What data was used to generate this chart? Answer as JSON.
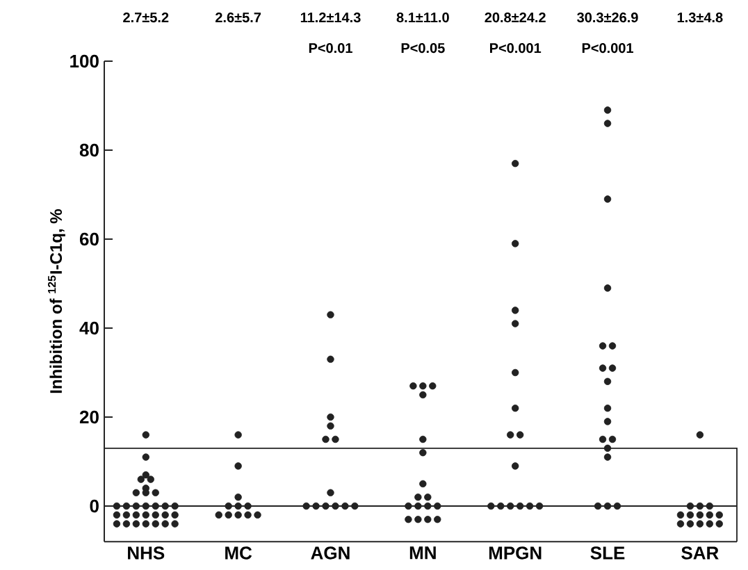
{
  "chart_data": {
    "type": "scatter",
    "ylabel": "Inhibition of $^{125}$I-C1q, %",
    "categories": [
      "NHS",
      "MC",
      "AGN",
      "MN",
      "MPGN",
      "SLE",
      "SAR"
    ],
    "marker": "circle",
    "series": [
      {
        "color": "#222222",
        "x": [
          "NHS",
          "NHS",
          "NHS",
          "NHS",
          "NHS",
          "NHS",
          "NHS",
          "NHS",
          "NHS",
          "NHS",
          "NHS",
          "NHS",
          "NHS",
          "NHS",
          "NHS",
          "NHS",
          "NHS",
          "NHS",
          "NHS",
          "NHS",
          "NHS",
          "NHS",
          "NHS",
          "NHS",
          "NHS",
          "NHS",
          "NHS",
          "NHS",
          "NHS",
          "NHS",
          "MC",
          "MC",
          "MC",
          "MC",
          "MC",
          "MC",
          "MC",
          "MC",
          "MC",
          "MC",
          "MC",
          "AGN",
          "AGN",
          "AGN",
          "AGN",
          "AGN",
          "AGN",
          "AGN",
          "AGN",
          "AGN",
          "AGN",
          "AGN",
          "AGN",
          "AGN",
          "MN",
          "MN",
          "MN",
          "MN",
          "MN",
          "MN",
          "MN",
          "MN",
          "MN",
          "MN",
          "MN",
          "MN",
          "MN",
          "MN",
          "MN",
          "MN",
          "MN",
          "MPGN",
          "MPGN",
          "MPGN",
          "MPGN",
          "MPGN",
          "MPGN",
          "MPGN",
          "MPGN",
          "MPGN",
          "MPGN",
          "MPGN",
          "MPGN",
          "MPGN",
          "MPGN",
          "MPGN",
          "SLE",
          "SLE",
          "SLE",
          "SLE",
          "SLE",
          "SLE",
          "SLE",
          "SLE",
          "SLE",
          "SLE",
          "SLE",
          "SLE",
          "SLE",
          "SLE",
          "SLE",
          "SLE",
          "SLE",
          "SLE",
          "SAR",
          "SAR",
          "SAR",
          "SAR",
          "SAR",
          "SAR",
          "SAR",
          "SAR",
          "SAR",
          "SAR",
          "SAR",
          "SAR",
          "SAR",
          "SAR"
        ],
        "values": [
          16,
          11,
          7,
          6,
          6,
          4,
          3,
          3,
          3,
          0,
          0,
          0,
          0,
          0,
          0,
          0,
          -2,
          -2,
          -2,
          -2,
          -2,
          -2,
          -2,
          -4,
          -4,
          -4,
          -4,
          -4,
          -4,
          -4,
          16,
          9,
          2,
          0,
          0,
          0,
          -2,
          -2,
          -2,
          -2,
          -2,
          43,
          33,
          20,
          18,
          15,
          15,
          3,
          0,
          0,
          0,
          0,
          0,
          0,
          27,
          27,
          27,
          25,
          15,
          12,
          5,
          2,
          2,
          0,
          0,
          0,
          0,
          -3,
          -3,
          -3,
          -3,
          77,
          59,
          44,
          41,
          30,
          22,
          16,
          16,
          9,
          0,
          0,
          0,
          0,
          0,
          0,
          89,
          86,
          69,
          49,
          36,
          36,
          31,
          31,
          28,
          22,
          19,
          15,
          15,
          13,
          11,
          0,
          0,
          0,
          16,
          0,
          0,
          0,
          -2,
          -2,
          -2,
          -2,
          -2,
          -4,
          -4,
          -4,
          -4,
          -4
        ]
      }
    ],
    "ylim": [
      -8,
      100
    ],
    "yticks": [
      0,
      20,
      40,
      60,
      80,
      100
    ],
    "ref_lines": [
      {
        "axis": "y",
        "value": 0,
        "color": "#222222"
      },
      {
        "axis": "y",
        "value": 13,
        "color": "#222222"
      }
    ],
    "annotations": [
      "2.7±5.2",
      "2.6±5.7",
      "11.2±14.3",
      "8.1±11.0",
      "20.8±24.2",
      "30.3±26.9",
      "1.3±4.8",
      "P<0.01",
      "P<0.05",
      "P<0.001",
      "P<0.001"
    ]
  }
}
